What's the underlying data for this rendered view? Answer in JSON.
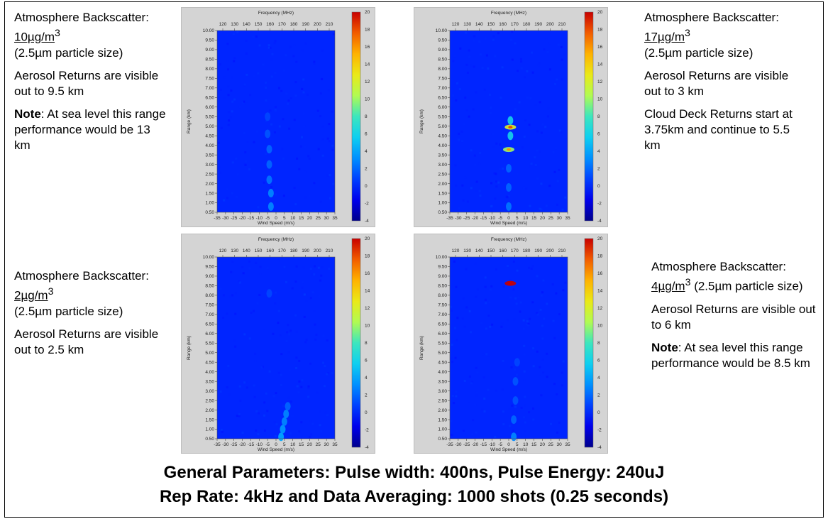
{
  "footer": {
    "line1": "General Parameters:  Pulse width: 400ns, Pulse Energy: 240uJ",
    "line2": "Rep Rate: 4kHz and Data Averaging: 1000 shots (0.25 seconds)"
  },
  "texts": [
    {
      "prefix": "Atmosphere Backscatter: ",
      "value": "10µg/m",
      "sup": "3",
      "suffix": "(2.5µm particle size)",
      "returns": "Aerosol Returns are visible out to 9.5 km",
      "note_label": "Note",
      "note_text": ": At sea level this range performance would be 13 km"
    },
    {
      "prefix": "Atmosphere Backscatter: ",
      "value": "17µg/m",
      "sup": "3",
      "suffix": "(2.5µm particle size)",
      "returns": "Aerosol Returns are visible out to 3 km",
      "cloud": "Cloud Deck Returns start at 3.75km and continue to 5.5 km"
    },
    {
      "prefix": "Atmosphere Backscatter: ",
      "value": "2µg/m",
      "sup": "3",
      "suffix": "(2.5µm particle size)",
      "returns": "Aerosol Returns are visible out to 2.5 km"
    },
    {
      "prefix": "Atmosphere Backscatter: ",
      "value": "4µg/m",
      "sup": "3",
      "suffix": " (2.5µm particle size)",
      "returns": "Aerosol Returns are visible out to 6 km",
      "note_label": "Note",
      "note_text": ": At sea level this range performance would be 8.5 km"
    }
  ],
  "chart_data": [
    {
      "type": "heatmap",
      "x_top_label": "Frequency (MHz)",
      "x_top_ticks": [
        120,
        130,
        140,
        150,
        160,
        170,
        180,
        190,
        200,
        210
      ],
      "x_label": "Wind Speed (m/s)",
      "x_ticks": [
        -35,
        -30,
        -25,
        -20,
        -15,
        -10,
        -5,
        0,
        5,
        10,
        15,
        20,
        25,
        30,
        35
      ],
      "y_label": "Range (km)",
      "y_ticks": [
        "10.00",
        "9.50",
        "9.00",
        "8.50",
        "8.00",
        "7.50",
        "7.00",
        "6.50",
        "6.00",
        "5.50",
        "5.00",
        "4.50",
        "4.00",
        "3.50",
        "3.00",
        "2.50",
        "2.00",
        "1.50",
        "1.00",
        "0.50"
      ],
      "xlim": [
        -35,
        35
      ],
      "ylim": [
        0.5,
        10
      ],
      "colorbar_ticks": [
        20,
        18,
        16,
        14,
        12,
        10,
        8,
        6,
        4,
        2,
        0,
        -2,
        -4
      ],
      "colorbar_range": [
        -4,
        20
      ],
      "background_level": 0,
      "hotspots": [
        {
          "wind": -3,
          "range": 0.8,
          "level": 3
        },
        {
          "wind": -3,
          "range": 1.5,
          "level": 3
        },
        {
          "wind": -4,
          "range": 2.2,
          "level": 2.5
        },
        {
          "wind": -4,
          "range": 3.0,
          "level": 2
        },
        {
          "wind": -4,
          "range": 3.8,
          "level": 2
        },
        {
          "wind": -5,
          "range": 4.6,
          "level": 1.5
        },
        {
          "wind": -5,
          "range": 5.5,
          "level": 1
        }
      ]
    },
    {
      "type": "heatmap",
      "x_top_label": "Frequency (MHz)",
      "x_top_ticks": [
        120,
        130,
        140,
        150,
        160,
        170,
        180,
        190,
        200,
        210
      ],
      "x_label": "Wind Speed (m/s)",
      "x_ticks": [
        -35,
        -30,
        -25,
        -20,
        -15,
        -10,
        -5,
        0,
        5,
        10,
        15,
        20,
        25,
        30,
        35
      ],
      "y_label": "Range (km)",
      "y_ticks": [
        "10.00",
        "9.50",
        "9.00",
        "8.50",
        "8.00",
        "7.50",
        "7.00",
        "6.50",
        "6.00",
        "5.50",
        "5.00",
        "4.50",
        "4.00",
        "3.50",
        "3.00",
        "2.50",
        "2.00",
        "1.50",
        "1.00",
        "0.50"
      ],
      "xlim": [
        -35,
        35
      ],
      "ylim": [
        0.5,
        10
      ],
      "colorbar_ticks": [
        20,
        18,
        16,
        14,
        12,
        10,
        8,
        6,
        4,
        2,
        0,
        -2,
        -4
      ],
      "colorbar_range": [
        -4,
        20
      ],
      "background_level": 0,
      "hotspots": [
        {
          "wind": 0,
          "range": 0.8,
          "level": 2.5
        },
        {
          "wind": 0,
          "range": 1.8,
          "level": 2
        },
        {
          "wind": 0,
          "range": 2.8,
          "level": 2
        },
        {
          "wind": 0,
          "range": 3.78,
          "level": 10
        },
        {
          "wind": 1,
          "range": 4.5,
          "level": 6
        },
        {
          "wind": 1,
          "range": 4.95,
          "level": 12
        },
        {
          "wind": 1,
          "range": 5.3,
          "level": 6
        }
      ]
    },
    {
      "type": "heatmap",
      "x_top_label": "Frequency (MHz)",
      "x_top_ticks": [
        120,
        130,
        140,
        150,
        160,
        170,
        180,
        190,
        200,
        210
      ],
      "x_label": "Wind Speed (m/s)",
      "x_ticks": [
        -35,
        -30,
        -25,
        -20,
        -15,
        -10,
        -5,
        0,
        5,
        10,
        15,
        20,
        25,
        30,
        35
      ],
      "y_label": "Range (km)",
      "y_ticks": [
        "10.00",
        "9.50",
        "9.00",
        "8.50",
        "8.00",
        "7.50",
        "7.00",
        "6.50",
        "6.00",
        "5.50",
        "5.00",
        "4.50",
        "4.00",
        "3.50",
        "3.00",
        "2.50",
        "2.00",
        "1.50",
        "1.00",
        "0.50"
      ],
      "xlim": [
        -35,
        35
      ],
      "ylim": [
        0.5,
        10
      ],
      "colorbar_ticks": [
        20,
        18,
        16,
        14,
        12,
        10,
        8,
        6,
        4,
        2,
        0,
        -2,
        -4
      ],
      "colorbar_range": [
        -4,
        20
      ],
      "background_level": 0,
      "hotspots": [
        {
          "wind": 3,
          "range": 0.6,
          "level": 4
        },
        {
          "wind": 4,
          "range": 1.0,
          "level": 3.5
        },
        {
          "wind": 5,
          "range": 1.4,
          "level": 3
        },
        {
          "wind": 6,
          "range": 1.8,
          "level": 3
        },
        {
          "wind": 7,
          "range": 2.2,
          "level": 2
        },
        {
          "wind": -4,
          "range": 8.1,
          "level": 1
        }
      ]
    },
    {
      "type": "heatmap",
      "x_top_label": "Frequency (MHz)",
      "x_top_ticks": [
        120,
        130,
        140,
        150,
        160,
        170,
        180,
        190,
        200,
        210
      ],
      "x_label": "Wind Speed (m/s)",
      "x_ticks": [
        -35,
        -30,
        -25,
        -20,
        -15,
        -10,
        -5,
        0,
        5,
        10,
        15,
        20,
        25,
        30,
        35
      ],
      "y_label": "Range (km)",
      "y_ticks": [
        "10.00",
        "9.50",
        "9.00",
        "8.50",
        "8.00",
        "7.50",
        "7.00",
        "6.50",
        "6.00",
        "5.50",
        "5.00",
        "4.50",
        "4.00",
        "3.50",
        "3.00",
        "2.50",
        "2.00",
        "1.50",
        "1.00",
        "0.50"
      ],
      "xlim": [
        -35,
        35
      ],
      "ylim": [
        0.5,
        10
      ],
      "colorbar_ticks": [
        20,
        18,
        16,
        14,
        12,
        10,
        8,
        6,
        4,
        2,
        0,
        -2,
        -4
      ],
      "colorbar_range": [
        -4,
        20
      ],
      "background_level": 0,
      "hotspots": [
        {
          "wind": 1,
          "range": 8.62,
          "level": 20
        },
        {
          "wind": 3,
          "range": 0.6,
          "level": 3
        },
        {
          "wind": 3,
          "range": 1.5,
          "level": 2
        },
        {
          "wind": 4,
          "range": 2.5,
          "level": 1.5
        },
        {
          "wind": 4,
          "range": 3.5,
          "level": 1.5
        },
        {
          "wind": 5,
          "range": 4.5,
          "level": 1
        }
      ]
    }
  ]
}
